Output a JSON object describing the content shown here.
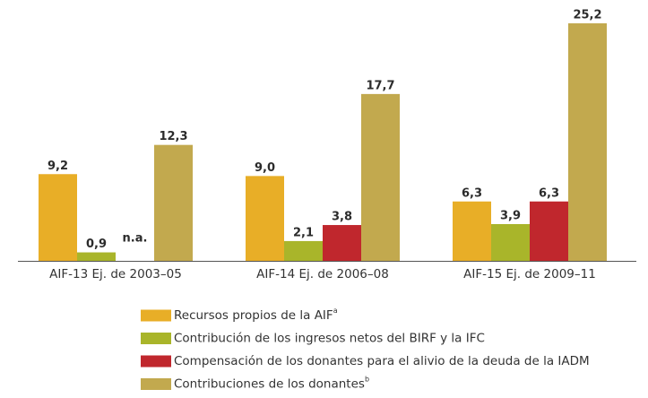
{
  "chart_data": {
    "type": "bar",
    "categories": [
      "AIF-13 Ej. de 2003–05",
      "AIF-14 Ej. de 2006–08",
      "AIF-15 Ej. de 2009–11"
    ],
    "series": [
      {
        "name": "Recursos propios de la AIF",
        "superscript": "a",
        "color": "#e8ae27",
        "values": [
          9.2,
          9.0,
          6.3
        ],
        "value_labels": [
          "9,2",
          "9,0",
          "6,3"
        ]
      },
      {
        "name": "Contribución de los ingresos netos del BIRF y la IFC",
        "color": "#a9b52a",
        "values": [
          0.9,
          2.1,
          3.9
        ],
        "value_labels": [
          "0,9",
          "2,1",
          "3,9"
        ]
      },
      {
        "name": "Compensación de los donantes para el alivio de la deuda de la IADM",
        "color": "#c0272d",
        "values": [
          null,
          3.8,
          6.3
        ],
        "value_labels": [
          "n.a.",
          "3,8",
          "6,3"
        ]
      },
      {
        "name": "Contribuciones de los donantes",
        "superscript": "b",
        "color": "#c2a94e",
        "values": [
          12.3,
          17.7,
          25.2
        ],
        "value_labels": [
          "12,3",
          "17,7",
          "25,2"
        ]
      }
    ],
    "ylim": [
      0,
      26
    ]
  }
}
